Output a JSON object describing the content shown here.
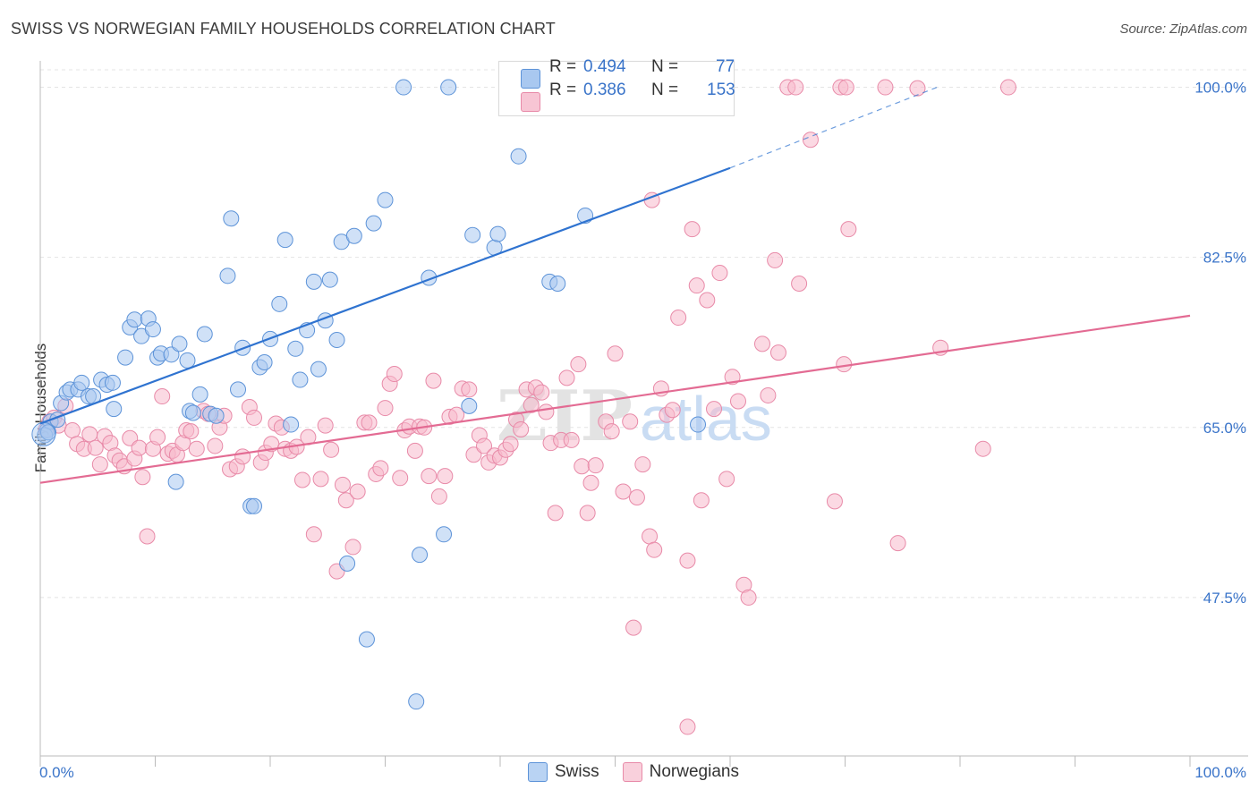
{
  "title": "SWISS VS NORWEGIAN FAMILY HOUSEHOLDS CORRELATION CHART",
  "source": "Source: ZipAtlas.com",
  "colors": {
    "swiss_fill": "#a9c8f0",
    "swiss_stroke": "#5d93d8",
    "swiss_line": "#2f73d0",
    "nor_fill": "#f7b9cc",
    "nor_stroke": "#e88aa8",
    "nor_line": "#e36b93",
    "tick_label": "#3a74c9",
    "grid": "#e4e4e4"
  },
  "legend_stats": [
    {
      "r_label": "R =",
      "r_value": "0.494",
      "n_label": "N =",
      "n_value": "77"
    },
    {
      "r_label": "R =",
      "r_value": "0.386",
      "n_label": "N =",
      "n_value": "153"
    }
  ],
  "legend_bottom": [
    "Swiss",
    "Norwegians"
  ],
  "watermark": "ZIPatlas",
  "chart_data": {
    "type": "scatter",
    "title": "SWISS VS NORWEGIAN FAMILY HOUSEHOLDS CORRELATION CHART",
    "xlabel": "",
    "ylabel": "Family Households",
    "xlim": [
      0,
      100
    ],
    "ylim": [
      31.2,
      101.8
    ],
    "x_tick_labels": [
      "0.0%",
      "100.0%"
    ],
    "y_ticks": [
      47.5,
      65.0,
      82.5,
      100.0
    ],
    "y_tick_labels": [
      "47.5%",
      "65.0%",
      "82.5%",
      "100.0%"
    ],
    "grid": true,
    "legend_position": "top-center",
    "series": [
      {
        "name": "Swiss",
        "r": 0.494,
        "n": 77,
        "trend": {
          "x0": 0,
          "y0": 65.4,
          "x1": 60,
          "y1": 91.7,
          "dash_to_x": 78,
          "dash_to_y": 100
        },
        "points": [
          [
            0.6,
            64.7
          ],
          [
            0.9,
            65.6
          ],
          [
            1.5,
            65.8
          ],
          [
            1.8,
            67.5
          ],
          [
            2.3,
            68.6
          ],
          [
            2.6,
            68.9
          ],
          [
            3.3,
            68.9
          ],
          [
            3.6,
            69.6
          ],
          [
            4.2,
            68.2
          ],
          [
            4.6,
            68.2
          ],
          [
            5.3,
            69.9
          ],
          [
            5.8,
            69.4
          ],
          [
            6.3,
            69.6
          ],
          [
            6.4,
            66.9
          ],
          [
            7.4,
            72.2
          ],
          [
            7.8,
            75.3
          ],
          [
            8.2,
            76.1
          ],
          [
            8.8,
            74.4
          ],
          [
            9.4,
            76.2
          ],
          [
            9.8,
            75.1
          ],
          [
            10.2,
            72.2
          ],
          [
            10.5,
            72.6
          ],
          [
            11.4,
            72.5
          ],
          [
            11.8,
            59.4
          ],
          [
            12.1,
            73.6
          ],
          [
            12.8,
            71.9
          ],
          [
            13.0,
            66.7
          ],
          [
            13.3,
            66.5
          ],
          [
            13.9,
            68.4
          ],
          [
            14.3,
            74.6
          ],
          [
            14.8,
            66.4
          ],
          [
            15.3,
            66.2
          ],
          [
            16.3,
            80.6
          ],
          [
            16.6,
            86.5
          ],
          [
            17.2,
            68.9
          ],
          [
            17.6,
            73.2
          ],
          [
            18.3,
            56.9
          ],
          [
            18.6,
            56.9
          ],
          [
            19.1,
            71.2
          ],
          [
            19.5,
            71.7
          ],
          [
            20.0,
            74.1
          ],
          [
            20.8,
            77.7
          ],
          [
            21.3,
            84.3
          ],
          [
            21.8,
            65.3
          ],
          [
            22.2,
            73.1
          ],
          [
            22.6,
            69.9
          ],
          [
            23.2,
            75.0
          ],
          [
            23.8,
            80.0
          ],
          [
            24.2,
            71.0
          ],
          [
            24.8,
            76.0
          ],
          [
            25.2,
            80.2
          ],
          [
            25.8,
            74.0
          ],
          [
            26.2,
            84.1
          ],
          [
            26.7,
            51.0
          ],
          [
            27.3,
            84.7
          ],
          [
            28.4,
            43.2
          ],
          [
            29.0,
            86.0
          ],
          [
            30.0,
            88.4
          ],
          [
            31.6,
            100.0
          ],
          [
            32.7,
            36.8
          ],
          [
            33.0,
            51.9
          ],
          [
            33.8,
            80.4
          ],
          [
            35.1,
            54.0
          ],
          [
            35.5,
            100.0
          ],
          [
            37.3,
            67.2
          ],
          [
            37.6,
            84.8
          ],
          [
            39.5,
            83.5
          ],
          [
            39.8,
            84.9
          ],
          [
            41.6,
            92.9
          ],
          [
            44.3,
            80.0
          ],
          [
            45.0,
            79.8
          ],
          [
            47.4,
            86.8
          ],
          [
            51.5,
            100.0
          ],
          [
            53.7,
            100.0
          ],
          [
            57.2,
            65.3
          ],
          [
            0.4,
            64.2
          ],
          [
            0.7,
            64.5
          ]
        ]
      },
      {
        "name": "Norwegians",
        "r": 0.386,
        "n": 153,
        "trend": {
          "x0": 0,
          "y0": 59.3,
          "x1": 100,
          "y1": 76.5
        },
        "points": [
          [
            0.5,
            64.8
          ],
          [
            0.8,
            65.6
          ],
          [
            1.2,
            66.0
          ],
          [
            1.6,
            65.2
          ],
          [
            2.2,
            67.2
          ],
          [
            2.8,
            64.7
          ],
          [
            3.2,
            63.3
          ],
          [
            3.8,
            62.8
          ],
          [
            4.3,
            64.3
          ],
          [
            4.8,
            62.9
          ],
          [
            5.2,
            61.2
          ],
          [
            5.6,
            64.1
          ],
          [
            6.1,
            63.4
          ],
          [
            6.5,
            62.1
          ],
          [
            6.9,
            61.6
          ],
          [
            7.3,
            61.0
          ],
          [
            7.8,
            63.9
          ],
          [
            8.2,
            61.8
          ],
          [
            8.6,
            62.9
          ],
          [
            8.9,
            59.9
          ],
          [
            9.3,
            53.8
          ],
          [
            9.8,
            62.8
          ],
          [
            10.2,
            64.0
          ],
          [
            10.6,
            68.2
          ],
          [
            11.1,
            62.3
          ],
          [
            11.5,
            62.6
          ],
          [
            11.9,
            62.2
          ],
          [
            12.4,
            63.4
          ],
          [
            12.7,
            64.7
          ],
          [
            13.1,
            64.6
          ],
          [
            13.6,
            62.8
          ],
          [
            14.2,
            66.7
          ],
          [
            14.6,
            66.4
          ],
          [
            15.2,
            63.1
          ],
          [
            15.6,
            65.0
          ],
          [
            16.0,
            66.2
          ],
          [
            16.5,
            60.7
          ],
          [
            17.1,
            61.0
          ],
          [
            17.6,
            62.0
          ],
          [
            18.2,
            67.1
          ],
          [
            18.6,
            66.0
          ],
          [
            19.2,
            61.4
          ],
          [
            19.6,
            62.4
          ],
          [
            20.1,
            63.3
          ],
          [
            20.5,
            65.4
          ],
          [
            21.0,
            65.0
          ],
          [
            21.3,
            62.8
          ],
          [
            21.8,
            62.6
          ],
          [
            22.3,
            63.0
          ],
          [
            22.8,
            59.6
          ],
          [
            23.3,
            64.0
          ],
          [
            23.8,
            54.0
          ],
          [
            24.4,
            59.7
          ],
          [
            24.8,
            65.2
          ],
          [
            25.3,
            62.7
          ],
          [
            25.8,
            50.2
          ],
          [
            26.3,
            59.1
          ],
          [
            26.6,
            57.5
          ],
          [
            27.2,
            52.7
          ],
          [
            27.6,
            58.4
          ],
          [
            28.2,
            65.5
          ],
          [
            28.6,
            65.5
          ],
          [
            29.2,
            60.2
          ],
          [
            29.6,
            60.8
          ],
          [
            30.0,
            67.0
          ],
          [
            30.4,
            69.5
          ],
          [
            30.8,
            70.5
          ],
          [
            31.3,
            59.8
          ],
          [
            31.7,
            64.7
          ],
          [
            32.1,
            65.1
          ],
          [
            32.6,
            62.6
          ],
          [
            33.0,
            65.1
          ],
          [
            33.4,
            65.0
          ],
          [
            33.8,
            60.0
          ],
          [
            34.2,
            69.8
          ],
          [
            34.7,
            57.9
          ],
          [
            35.2,
            60.0
          ],
          [
            35.6,
            66.1
          ],
          [
            36.2,
            66.3
          ],
          [
            36.7,
            69.0
          ],
          [
            37.3,
            68.9
          ],
          [
            37.7,
            62.2
          ],
          [
            38.2,
            64.2
          ],
          [
            38.6,
            63.1
          ],
          [
            39.0,
            61.4
          ],
          [
            39.5,
            62.1
          ],
          [
            40.0,
            61.9
          ],
          [
            40.5,
            62.7
          ],
          [
            40.9,
            63.3
          ],
          [
            41.4,
            65.8
          ],
          [
            41.8,
            64.8
          ],
          [
            42.3,
            68.9
          ],
          [
            42.7,
            67.3
          ],
          [
            43.1,
            69.1
          ],
          [
            43.6,
            68.6
          ],
          [
            44.0,
            66.6
          ],
          [
            44.4,
            63.4
          ],
          [
            44.8,
            56.2
          ],
          [
            45.3,
            63.7
          ],
          [
            45.8,
            70.1
          ],
          [
            46.2,
            63.7
          ],
          [
            46.8,
            71.5
          ],
          [
            47.1,
            61.0
          ],
          [
            47.6,
            56.2
          ],
          [
            47.9,
            59.3
          ],
          [
            48.3,
            61.1
          ],
          [
            49.2,
            65.6
          ],
          [
            49.7,
            64.6
          ],
          [
            50.0,
            72.6
          ],
          [
            50.7,
            58.4
          ],
          [
            51.3,
            65.6
          ],
          [
            51.9,
            57.8
          ],
          [
            52.4,
            61.2
          ],
          [
            53.0,
            53.8
          ],
          [
            53.4,
            52.4
          ],
          [
            54.0,
            69.0
          ],
          [
            54.5,
            66.3
          ],
          [
            55.0,
            66.8
          ],
          [
            55.5,
            76.3
          ],
          [
            56.3,
            51.3
          ],
          [
            56.7,
            85.4
          ],
          [
            57.1,
            79.6
          ],
          [
            57.5,
            57.5
          ],
          [
            58.0,
            78.1
          ],
          [
            58.6,
            66.9
          ],
          [
            59.1,
            80.9
          ],
          [
            59.7,
            59.7
          ],
          [
            60.2,
            70.2
          ],
          [
            60.7,
            67.7
          ],
          [
            61.2,
            48.8
          ],
          [
            61.6,
            47.5
          ],
          [
            62.8,
            73.6
          ],
          [
            63.3,
            68.3
          ],
          [
            63.9,
            82.2
          ],
          [
            64.2,
            72.7
          ],
          [
            65.0,
            100.0
          ],
          [
            65.7,
            100.0
          ],
          [
            67.0,
            94.6
          ],
          [
            69.1,
            57.4
          ],
          [
            69.6,
            100.0
          ],
          [
            70.1,
            100.0
          ],
          [
            73.5,
            100.0
          ],
          [
            74.6,
            53.1
          ],
          [
            76.3,
            99.9
          ],
          [
            78.3,
            73.2
          ],
          [
            82.0,
            62.8
          ],
          [
            84.2,
            100.0
          ],
          [
            51.6,
            44.4
          ],
          [
            53.2,
            88.4
          ],
          [
            56.3,
            34.2
          ],
          [
            66.0,
            79.8
          ],
          [
            69.9,
            71.5
          ],
          [
            70.3,
            85.4
          ]
        ]
      }
    ]
  }
}
